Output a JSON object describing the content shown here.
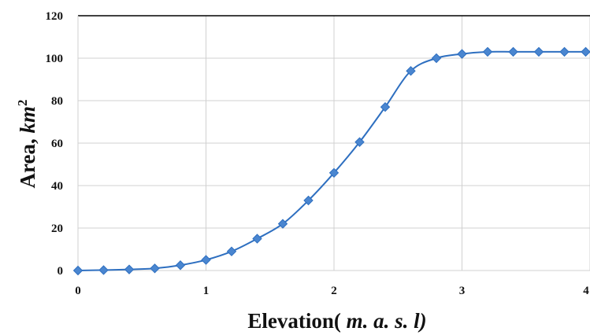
{
  "chart_data": {
    "type": "line",
    "xlabel": {
      "main": "Elevation(",
      "unit": " m. a. s. l)"
    },
    "ylabel": {
      "main": "Area, ",
      "unit": "km",
      "sup": "2"
    },
    "xlim": [
      0,
      4
    ],
    "ylim": [
      0,
      120
    ],
    "xticks": [
      0,
      1,
      2,
      3,
      4
    ],
    "xtick_labels": [
      "0",
      "1",
      "2",
      "3",
      "4"
    ],
    "yticks": [
      0,
      20,
      40,
      60,
      80,
      100,
      120
    ],
    "ytick_labels": [
      "0",
      "20",
      "40",
      "60",
      "80",
      "100",
      "120"
    ],
    "grid": true,
    "series": [
      {
        "color": "#2e6fc0",
        "marker": "diamond",
        "marker_color": "#4a86d0",
        "x": [
          0,
          0.2,
          0.4,
          0.6,
          0.8,
          1.0,
          1.2,
          1.4,
          1.6,
          1.8,
          2.0,
          2.2,
          2.4,
          2.6,
          2.8,
          3.0,
          3.2,
          3.4,
          3.6,
          3.8,
          4.0
        ],
        "y": [
          0,
          0.2,
          0.5,
          1.0,
          2.5,
          5.0,
          9.0,
          15.0,
          22.0,
          33.0,
          46.0,
          60.5,
          77.0,
          94.0,
          100.0,
          102.0,
          103.0,
          103.0,
          103.0,
          103.0,
          103.0
        ]
      }
    ]
  }
}
